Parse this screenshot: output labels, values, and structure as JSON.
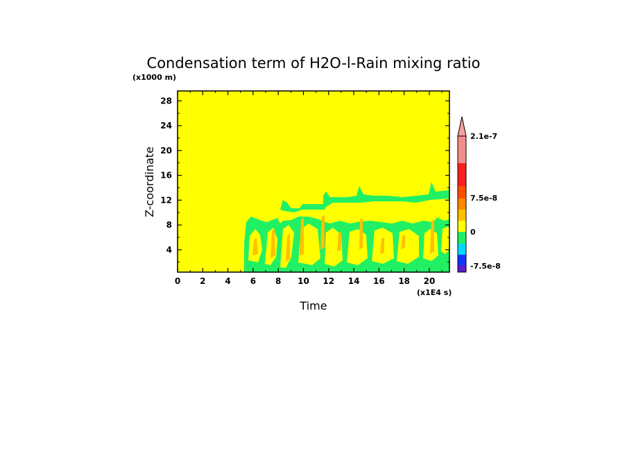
{
  "chart_data": {
    "type": "heatmap",
    "title": "Condensation term of H2O-l-Rain mixing ratio",
    "xlabel": "Time",
    "ylabel": "Z-coordinate",
    "x_unit": "(x1E4 s)",
    "y_unit": "(x1000 m)",
    "xlim": [
      0,
      21.6
    ],
    "ylim": [
      0.4,
      29.6
    ],
    "x_ticks": [
      "0",
      "2",
      "4",
      "6",
      "8",
      "10",
      "12",
      "14",
      "16",
      "18",
      "20"
    ],
    "y_ticks": [
      "4",
      "8",
      "12",
      "16",
      "20",
      "24",
      "28"
    ],
    "colorbar": {
      "labels": [
        "2.1e-7",
        "7.5e-8",
        "0",
        "-7.5e-8"
      ],
      "colors": [
        "#5a1ec8",
        "#1434ff",
        "#00d8ff",
        "#22f064",
        "#ffff00",
        "#ffc000",
        "#ff8800",
        "#ff5000",
        "#ff1e1e",
        "#f58c8c"
      ],
      "extend_max_color": "#f5a0a0"
    },
    "regions": [
      {
        "level": "negative",
        "color": "#22f064",
        "desc": "broad band z 0-9 for t 5.2-21.6, upper layer z ~12-13 for t 11.5-21.6"
      },
      {
        "level": "zero",
        "color": "#ffff00",
        "desc": "background"
      },
      {
        "level": "small-positive",
        "color": "#ffc000",
        "desc": "streaks z 2-8 for t 5.5-21"
      }
    ]
  }
}
